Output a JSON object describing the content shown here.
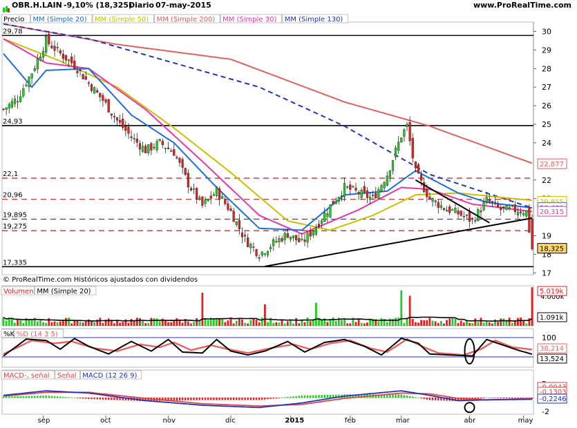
{
  "header": {
    "ticker": "OBR.H.LAIN",
    "change": "-9,10% (18,325)",
    "period": "Diario",
    "date": "07-may-2015",
    "site": "www.ProRealTime.com"
  },
  "footer_note": "© ProRealTime.com  Históricos ajustados con dividendos",
  "colors": {
    "up": "#22cc22",
    "down": "#dd2222",
    "sma20": "#1a6fe0",
    "sma50": "#c8c000",
    "sma200": "#e06060",
    "sma30": "#ee33aa",
    "sma130": "#2233bb",
    "volume_up": "#22cc22",
    "volume_down": "#dd2222",
    "k_line": "#000000",
    "d_line": "#ee6060",
    "macd": "#2233bb",
    "signal": "#dd4444"
  },
  "chart_data": [
    {
      "type": "candlestick",
      "title": "Precio",
      "legend": [
        "Precio",
        "MM (Simple 20)",
        "MM (Simple 50)",
        "MM (Simple 200)",
        "MM (Simple 30)",
        "MM (Simple 130)"
      ],
      "y_ticks": [
        30,
        29,
        28,
        27,
        26,
        25,
        24,
        22,
        21,
        19,
        18,
        17
      ],
      "ylim": [
        16.9,
        30.5
      ],
      "x_month_labels": [
        "sep",
        "oct",
        "nov",
        "dic",
        "2015",
        "feb",
        "mar",
        "abr",
        "may"
      ],
      "horizontal_levels": [
        {
          "value": 29.78,
          "label": "29,78",
          "style": "solid"
        },
        {
          "value": 24.93,
          "label": "24,93",
          "style": "solid"
        },
        {
          "value": 22.1,
          "label": "22,1",
          "style": "dashed"
        },
        {
          "value": 20.96,
          "label": "20,96",
          "style": "dashed"
        },
        {
          "value": 19.895,
          "label": "19,895",
          "style": "dashed"
        },
        {
          "value": 19.275,
          "label": "19,275",
          "style": "dashed"
        },
        {
          "value": 17.335,
          "label": "17,335",
          "style": "solid"
        }
      ],
      "right_value_labels": [
        {
          "value": 22.877,
          "label": "22,877",
          "color": "#e06060"
        },
        {
          "value": 20.855,
          "label": "20,855",
          "color": "#c8c000"
        },
        {
          "value": 20.48,
          "label": "20,480",
          "color": "#1a6fe0"
        },
        {
          "value": 20.315,
          "label": "20,315",
          "color": "#ee33aa"
        },
        {
          "value": 18.325,
          "label": "18,325",
          "color": "#000000"
        }
      ],
      "close_anchors": [
        [
          0,
          25.8
        ],
        [
          5,
          26.4
        ],
        [
          10,
          27.8
        ],
        [
          15,
          29.5
        ],
        [
          20,
          28.8
        ],
        [
          25,
          28.2
        ],
        [
          30,
          27.2
        ],
        [
          35,
          26.3
        ],
        [
          40,
          25.2
        ],
        [
          45,
          24.3
        ],
        [
          50,
          23.6
        ],
        [
          55,
          24.0
        ],
        [
          60,
          23.5
        ],
        [
          65,
          21.8
        ],
        [
          70,
          20.6
        ],
        [
          75,
          21.4
        ],
        [
          80,
          20.3
        ],
        [
          85,
          18.8
        ],
        [
          90,
          18.0
        ],
        [
          95,
          18.6
        ],
        [
          100,
          19.1
        ],
        [
          105,
          18.6
        ],
        [
          110,
          19.5
        ],
        [
          115,
          20.6
        ],
        [
          120,
          21.6
        ],
        [
          125,
          21.3
        ],
        [
          130,
          21.0
        ],
        [
          135,
          22.3
        ],
        [
          140,
          24.4
        ],
        [
          142,
          24.9
        ],
        [
          145,
          22.4
        ],
        [
          150,
          21.0
        ],
        [
          155,
          20.5
        ],
        [
          160,
          20.2
        ],
        [
          165,
          19.8
        ],
        [
          170,
          20.9
        ],
        [
          175,
          20.4
        ],
        [
          180,
          20.4
        ],
        [
          184,
          20.3
        ],
        [
          186,
          18.3
        ]
      ],
      "trendlines": [
        {
          "from": [
            92,
            17.35
          ],
          "to": [
            186,
            19.95
          ]
        },
        {
          "from": [
            145,
            22.0
          ],
          "to": [
            171,
            19.7
          ]
        }
      ],
      "sma200_anchors": [
        [
          0,
          30.4
        ],
        [
          40,
          29.3
        ],
        [
          80,
          28.5
        ],
        [
          120,
          26.2
        ],
        [
          150,
          24.9
        ],
        [
          186,
          22.9
        ]
      ],
      "sma130_anchors": [
        [
          0,
          30.4
        ],
        [
          30,
          29.6
        ],
        [
          60,
          28.3
        ],
        [
          90,
          27.0
        ],
        [
          120,
          24.9
        ],
        [
          150,
          22.3
        ],
        [
          186,
          20.5
        ]
      ],
      "sma50_anchors": [
        [
          0,
          29.6
        ],
        [
          20,
          28.4
        ],
        [
          40,
          27.0
        ],
        [
          60,
          24.8
        ],
        [
          80,
          22.4
        ],
        [
          100,
          19.8
        ],
        [
          115,
          19.3
        ],
        [
          130,
          20.1
        ],
        [
          145,
          21.2
        ],
        [
          160,
          21.3
        ],
        [
          186,
          20.9
        ]
      ],
      "sma30_anchors": [
        [
          0,
          29.6
        ],
        [
          15,
          28.3
        ],
        [
          30,
          28.0
        ],
        [
          50,
          25.8
        ],
        [
          70,
          23.0
        ],
        [
          90,
          20.1
        ],
        [
          105,
          19.1
        ],
        [
          125,
          20.4
        ],
        [
          140,
          21.6
        ],
        [
          150,
          21.5
        ],
        [
          165,
          20.7
        ],
        [
          186,
          20.3
        ]
      ],
      "sma20_anchors": [
        [
          0,
          28.8
        ],
        [
          10,
          27.0
        ],
        [
          15,
          27.9
        ],
        [
          30,
          28.0
        ],
        [
          45,
          25.5
        ],
        [
          60,
          24.0
        ],
        [
          75,
          21.6
        ],
        [
          90,
          19.4
        ],
        [
          105,
          19.3
        ],
        [
          120,
          21.2
        ],
        [
          135,
          21.4
        ],
        [
          145,
          22.5
        ],
        [
          160,
          21.3
        ],
        [
          170,
          20.8
        ],
        [
          186,
          20.5
        ]
      ]
    },
    {
      "type": "bar",
      "title": "Volumen",
      "legend": [
        "Volumen",
        "MM (Simple 20)"
      ],
      "y_tick_labels": [
        "5.019k",
        "4.000k",
        "1.091k"
      ],
      "right_value_labels": [
        "5.019k",
        "1.091k"
      ],
      "spikes": [
        [
          70,
          4.3
        ],
        [
          92,
          2.8
        ],
        [
          110,
          3.0
        ],
        [
          140,
          4.6
        ],
        [
          143,
          3.9
        ],
        [
          186,
          5.0
        ]
      ]
    },
    {
      "type": "line",
      "title": "%K",
      "legend": [
        "%K",
        "%D (14 3 5)"
      ],
      "y_ticks": [
        100,
        0
      ],
      "right_value_labels": [
        "38,214",
        "13,524"
      ],
      "k_anchors": [
        [
          0,
          5
        ],
        [
          8,
          92
        ],
        [
          15,
          85
        ],
        [
          20,
          40
        ],
        [
          25,
          95
        ],
        [
          30,
          55
        ],
        [
          37,
          15
        ],
        [
          45,
          80
        ],
        [
          52,
          30
        ],
        [
          58,
          90
        ],
        [
          63,
          25
        ],
        [
          70,
          20
        ],
        [
          75,
          90
        ],
        [
          80,
          30
        ],
        [
          86,
          10
        ],
        [
          92,
          30
        ],
        [
          100,
          80
        ],
        [
          106,
          25
        ],
        [
          113,
          75
        ],
        [
          120,
          90
        ],
        [
          127,
          55
        ],
        [
          133,
          10
        ],
        [
          140,
          96
        ],
        [
          146,
          70
        ],
        [
          150,
          15
        ],
        [
          160,
          8
        ],
        [
          165,
          5
        ],
        [
          170,
          90
        ],
        [
          176,
          60
        ],
        [
          181,
          35
        ],
        [
          186,
          14
        ]
      ],
      "d_anchors": [
        [
          0,
          15
        ],
        [
          10,
          85
        ],
        [
          18,
          70
        ],
        [
          24,
          80
        ],
        [
          32,
          45
        ],
        [
          40,
          30
        ],
        [
          48,
          65
        ],
        [
          55,
          50
        ],
        [
          60,
          75
        ],
        [
          66,
          35
        ],
        [
          73,
          60
        ],
        [
          79,
          40
        ],
        [
          86,
          20
        ],
        [
          94,
          45
        ],
        [
          102,
          65
        ],
        [
          108,
          40
        ],
        [
          115,
          70
        ],
        [
          122,
          85
        ],
        [
          129,
          45
        ],
        [
          135,
          25
        ],
        [
          142,
          92
        ],
        [
          148,
          50
        ],
        [
          153,
          20
        ],
        [
          162,
          10
        ],
        [
          168,
          40
        ],
        [
          173,
          85
        ],
        [
          179,
          50
        ],
        [
          186,
          38
        ]
      ]
    },
    {
      "type": "line",
      "title": "MACD",
      "legend": [
        "MACD-, señal",
        "Señal",
        "MACD (12 26 9)"
      ],
      "y_ticks": [
        2,
        0,
        -2
      ],
      "right_value_labels": [
        "-0,0943",
        "-0,1303",
        "-0,2246"
      ],
      "macd_anchors": [
        [
          0,
          0.3
        ],
        [
          15,
          0.9
        ],
        [
          30,
          0.6
        ],
        [
          50,
          -0.4
        ],
        [
          70,
          -1.0
        ],
        [
          90,
          -1.3
        ],
        [
          105,
          -0.7
        ],
        [
          120,
          0.2
        ],
        [
          140,
          0.9
        ],
        [
          150,
          0.3
        ],
        [
          160,
          -0.4
        ],
        [
          170,
          -0.3
        ],
        [
          186,
          -0.22
        ]
      ],
      "signal_anchors": [
        [
          0,
          0.2
        ],
        [
          15,
          0.7
        ],
        [
          30,
          0.7
        ],
        [
          50,
          -0.1
        ],
        [
          70,
          -0.8
        ],
        [
          90,
          -1.1
        ],
        [
          105,
          -0.9
        ],
        [
          120,
          -0.1
        ],
        [
          140,
          0.6
        ],
        [
          150,
          0.5
        ],
        [
          160,
          -0.1
        ],
        [
          170,
          -0.3
        ],
        [
          186,
          -0.13
        ]
      ]
    }
  ]
}
